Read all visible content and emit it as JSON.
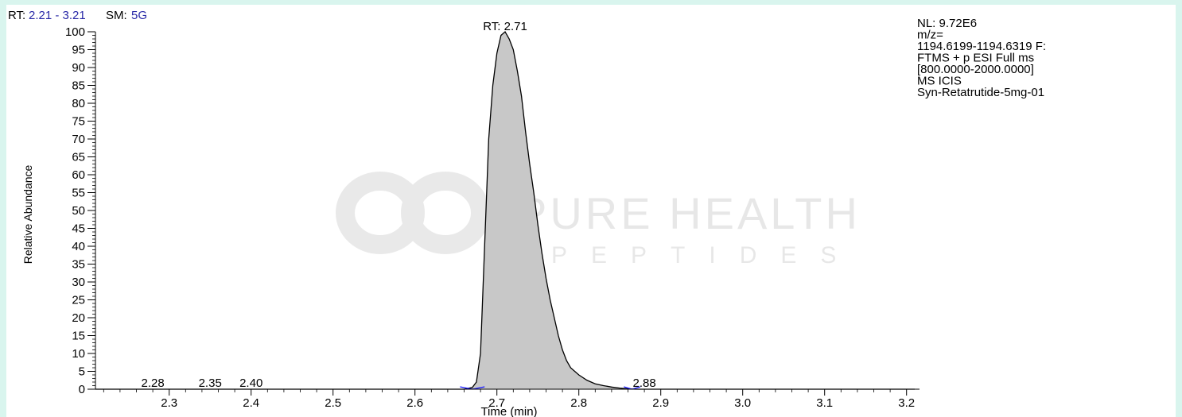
{
  "header": {
    "rt_label": "RT:",
    "rt_range": "2.21 - 3.21",
    "sm_label": "SM:",
    "sm_value": "5G"
  },
  "info_box": {
    "lines": [
      "NL: 9.72E6",
      "m/z=",
      "1194.6199-1194.6319 F:",
      "FTMS + p ESI Full ms",
      "[800.0000-2000.0000]",
      "MS  ICIS",
      "Syn-Retatrutide-5mg-01"
    ]
  },
  "watermark": {
    "name": "PURE HEALTH",
    "sub": "PEPTIDES"
  },
  "colors": {
    "header_blue": "#2a2aa8",
    "peak_fill": "#c8c8c8",
    "axis": "#000000",
    "baseline_marker": "#1a1aff",
    "background": "#d9f5ee"
  },
  "chart_data": {
    "type": "area",
    "title": "",
    "xlabel": "Time (min)",
    "ylabel": "Relative Abundance",
    "xlim": [
      2.21,
      3.21
    ],
    "ylim": [
      0,
      100
    ],
    "x_ticks": [
      "2.3",
      "2.4",
      "2.5",
      "2.6",
      "2.7",
      "2.8",
      "2.9",
      "3.0",
      "3.1",
      "3.2"
    ],
    "y_ticks": [
      "0",
      "5",
      "10",
      "15",
      "20",
      "25",
      "30",
      "35",
      "40",
      "45",
      "50",
      "55",
      "60",
      "65",
      "70",
      "75",
      "80",
      "85",
      "90",
      "95",
      "100"
    ],
    "grid": false,
    "legend": "none",
    "series": [
      {
        "x": [
          2.21,
          2.66,
          2.67,
          2.675,
          2.68,
          2.685,
          2.69,
          2.695,
          2.7,
          2.705,
          2.71,
          2.715,
          2.72,
          2.725,
          2.73,
          2.735,
          2.74,
          2.745,
          2.75,
          2.755,
          2.76,
          2.765,
          2.77,
          2.775,
          2.78,
          2.785,
          2.79,
          2.8,
          2.81,
          2.82,
          2.83,
          2.84,
          2.85,
          2.86,
          2.87,
          3.21
        ],
        "values": [
          0,
          0,
          0.5,
          2,
          10,
          40,
          70,
          85,
          94,
          99,
          100,
          98,
          95,
          89,
          82,
          72,
          63,
          55,
          46,
          38,
          31,
          25,
          20,
          15,
          11,
          8,
          6,
          4,
          2.5,
          1.5,
          1,
          0.6,
          0.3,
          0.1,
          0,
          0
        ]
      }
    ],
    "annotations": [
      {
        "label": "RT: 2.71",
        "x": 2.71,
        "y": 100
      },
      {
        "label": "2.28",
        "x": 2.28,
        "y": 0
      },
      {
        "label": "2.35",
        "x": 2.35,
        "y": 0
      },
      {
        "label": "2.40",
        "x": 2.4,
        "y": 0
      },
      {
        "label": "2.88",
        "x": 2.88,
        "y": 0
      }
    ]
  }
}
